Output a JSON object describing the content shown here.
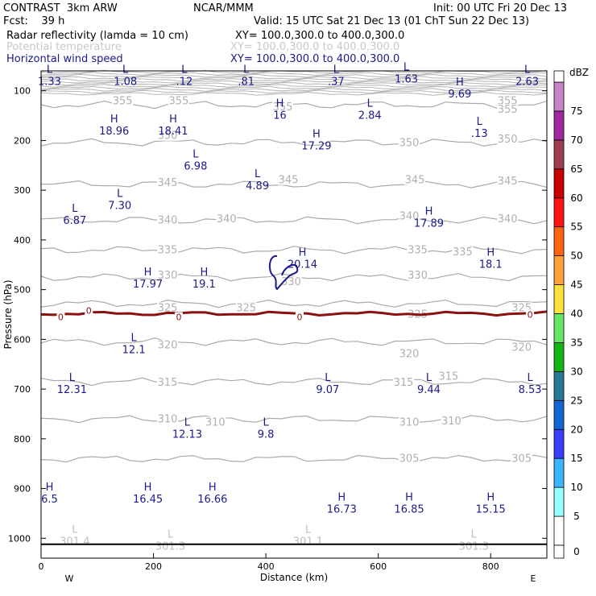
{
  "header": {
    "model": "CONTRAST  3km ARW",
    "org": "NCAR/MMM",
    "init": "Init: 00 UTC Fri 20 Dec 13",
    "fcst": "Fcst:    39 h",
    "valid": "Valid: 15 UTC Sat 21 Dec 13 (01 ChT Sun 22 Dec 13)",
    "field1": "Radar reflectivity (lamda = 10 cm)",
    "field1_xy": "XY= 100.0,300.0 to 400.0,300.0",
    "field2": "Potential temperature",
    "field2_xy": "XY= 100.0,300.0 to 400.0,300.0",
    "field3": "Horizontal wind speed",
    "field3_xy": "XY= 100.0,300.0 to 400.0,300.0"
  },
  "chart_data": {
    "type": "cross-section",
    "xlabel": "Distance (km)",
    "ylabel": "Pressure (hPa)",
    "xlim": [
      0,
      900
    ],
    "ylim": [
      1040,
      60
    ],
    "xticks": [
      0,
      200,
      400,
      600,
      800
    ],
    "yticks": [
      100,
      200,
      300,
      400,
      500,
      600,
      700,
      800,
      900,
      1000
    ],
    "left_end": "W",
    "right_end": "E",
    "colorbar": {
      "unit": "dBZ",
      "levels": [
        "0",
        "5",
        "10",
        "15",
        "20",
        "25",
        "30",
        "35",
        "40",
        "45",
        "50",
        "55",
        "60",
        "65",
        "70",
        "75"
      ],
      "colors": [
        "#ffffff",
        "#96ffff",
        "#3cb4ff",
        "#3c3cff",
        "#1464d2",
        "#287896",
        "#14b414",
        "#64e664",
        "#ffe13c",
        "#ffa03c",
        "#ff6414",
        "#ff1414",
        "#c80000",
        "#a03c50",
        "#a028a0",
        "#c882c8"
      ]
    },
    "theta_contours": [
      {
        "level": 355,
        "p": 128
      },
      {
        "level": 350,
        "p": 204
      },
      {
        "level": 345,
        "p": 288
      },
      {
        "level": 340,
        "p": 360
      },
      {
        "level": 335,
        "p": 420
      },
      {
        "level": 330,
        "p": 475
      },
      {
        "level": 325,
        "p": 528
      },
      {
        "level": 320,
        "p": 605
      },
      {
        "level": 315,
        "p": 685
      },
      {
        "level": 310,
        "p": 760
      },
      {
        "level": 305,
        "p": 840
      }
    ],
    "theta_labels": [
      {
        "text": "355",
        "x": 145,
        "p": 124
      },
      {
        "text": "355",
        "x": 245,
        "p": 124
      },
      {
        "text": "355",
        "x": 430,
        "p": 136
      },
      {
        "text": "355",
        "x": 830,
        "p": 124
      },
      {
        "text": "355",
        "x": 830,
        "p": 141
      },
      {
        "text": "350",
        "x": 225,
        "p": 194
      },
      {
        "text": "350",
        "x": 655,
        "p": 208
      },
      {
        "text": "350",
        "x": 830,
        "p": 201
      },
      {
        "text": "345",
        "x": 225,
        "p": 288
      },
      {
        "text": "345",
        "x": 440,
        "p": 283
      },
      {
        "text": "345",
        "x": 665,
        "p": 283
      },
      {
        "text": "345",
        "x": 830,
        "p": 285
      },
      {
        "text": "340",
        "x": 225,
        "p": 364
      },
      {
        "text": "340",
        "x": 330,
        "p": 361
      },
      {
        "text": "340",
        "x": 655,
        "p": 356
      },
      {
        "text": "340",
        "x": 830,
        "p": 361
      },
      {
        "text": "335",
        "x": 225,
        "p": 424
      },
      {
        "text": "335",
        "x": 670,
        "p": 424
      },
      {
        "text": "335",
        "x": 750,
        "p": 428
      },
      {
        "text": "330",
        "x": 225,
        "p": 475
      },
      {
        "text": "330",
        "x": 445,
        "p": 488
      },
      {
        "text": "330",
        "x": 670,
        "p": 475
      },
      {
        "text": "325",
        "x": 225,
        "p": 540
      },
      {
        "text": "325",
        "x": 365,
        "p": 540
      },
      {
        "text": "325",
        "x": 670,
        "p": 553
      },
      {
        "text": "325",
        "x": 855,
        "p": 540
      },
      {
        "text": "320",
        "x": 225,
        "p": 615
      },
      {
        "text": "320",
        "x": 655,
        "p": 633
      },
      {
        "text": "320",
        "x": 855,
        "p": 620
      },
      {
        "text": "315",
        "x": 225,
        "p": 690
      },
      {
        "text": "315",
        "x": 645,
        "p": 690
      },
      {
        "text": "315",
        "x": 725,
        "p": 678
      },
      {
        "text": "310",
        "x": 225,
        "p": 764
      },
      {
        "text": "310",
        "x": 310,
        "p": 770
      },
      {
        "text": "310",
        "x": 655,
        "p": 770
      },
      {
        "text": "310",
        "x": 730,
        "p": 768
      },
      {
        "text": "305",
        "x": 655,
        "p": 843
      },
      {
        "text": "305",
        "x": 855,
        "p": 843
      }
    ],
    "freezing_level": {
      "label": "0",
      "p": 548
    },
    "freezing_labels": [
      {
        "text": "0",
        "x": 35,
        "p": 555
      },
      {
        "text": "0",
        "x": 85,
        "p": 542
      },
      {
        "text": "0",
        "x": 245,
        "p": 555
      },
      {
        "text": "0",
        "x": 460,
        "p": 555
      },
      {
        "text": "0",
        "x": 870,
        "p": 550
      }
    ],
    "wind_markers": [
      {
        "type": "L",
        "value": "1.33",
        "x": 15,
        "p": 80
      },
      {
        "type": "L",
        "value": "1.08",
        "x": 150,
        "p": 80
      },
      {
        "type": "L",
        "value": ".12",
        "x": 255,
        "p": 80
      },
      {
        "type": "L",
        "value": ".81",
        "x": 365,
        "p": 80
      },
      {
        "type": "L",
        "value": ".37",
        "x": 525,
        "p": 80
      },
      {
        "type": "L",
        "value": "1.63",
        "x": 650,
        "p": 75
      },
      {
        "type": "L",
        "value": "2.63",
        "x": 865,
        "p": 80
      },
      {
        "type": "H",
        "value": "9.69",
        "x": 745,
        "p": 105
      },
      {
        "type": "H",
        "value": "16",
        "x": 425,
        "p": 148
      },
      {
        "type": "L",
        "value": "2.84",
        "x": 585,
        "p": 148
      },
      {
        "type": "H",
        "value": "18.96",
        "x": 130,
        "p": 180
      },
      {
        "type": "H",
        "value": "18.41",
        "x": 235,
        "p": 180
      },
      {
        "type": "H",
        "value": "17.29",
        "x": 490,
        "p": 210
      },
      {
        "type": "L",
        "value": ".13",
        "x": 780,
        "p": 185
      },
      {
        "type": "L",
        "value": "6.98",
        "x": 275,
        "p": 250
      },
      {
        "type": "L",
        "value": "4.89",
        "x": 385,
        "p": 290
      },
      {
        "type": "L",
        "value": "7.30",
        "x": 140,
        "p": 330
      },
      {
        "type": "L",
        "value": "6.87",
        "x": 60,
        "p": 360
      },
      {
        "type": "H",
        "value": "17.89",
        "x": 690,
        "p": 365
      },
      {
        "type": "H",
        "value": "20.14",
        "x": 465,
        "p": 448
      },
      {
        "type": "H",
        "value": "18.1",
        "x": 800,
        "p": 448
      },
      {
        "type": "H",
        "value": "17.97",
        "x": 190,
        "p": 488
      },
      {
        "type": "H",
        "value": "19.1",
        "x": 290,
        "p": 488
      },
      {
        "type": "L",
        "value": "12.1",
        "x": 165,
        "p": 620
      },
      {
        "type": "L",
        "value": "12.31",
        "x": 55,
        "p": 700
      },
      {
        "type": "L",
        "value": "9.07",
        "x": 510,
        "p": 700
      },
      {
        "type": "L",
        "value": "9.44",
        "x": 690,
        "p": 700
      },
      {
        "type": "L",
        "value": "8.53",
        "x": 870,
        "p": 700
      },
      {
        "type": "L",
        "value": "12.13",
        "x": 260,
        "p": 790
      },
      {
        "type": "L",
        "value": "9.8",
        "x": 400,
        "p": 790
      },
      {
        "type": "H",
        "value": "6.5",
        "x": 15,
        "p": 920
      },
      {
        "type": "H",
        "value": "16.45",
        "x": 190,
        "p": 920
      },
      {
        "type": "H",
        "value": "16.66",
        "x": 305,
        "p": 920
      },
      {
        "type": "H",
        "value": "16.73",
        "x": 535,
        "p": 940
      },
      {
        "type": "H",
        "value": "16.85",
        "x": 655,
        "p": 940
      },
      {
        "type": "H",
        "value": "15.15",
        "x": 800,
        "p": 940
      }
    ],
    "surface_labels": [
      {
        "type": "L",
        "value": "301.4",
        "x": 60,
        "p": 1010
      },
      {
        "type": "L",
        "value": "301.3",
        "x": 230,
        "p": 1020
      },
      {
        "type": "L",
        "value": "301.1",
        "x": 475,
        "p": 1010
      },
      {
        "type": "L",
        "value": "301.3",
        "x": 770,
        "p": 1020
      }
    ],
    "surface_line_p": 1012
  }
}
